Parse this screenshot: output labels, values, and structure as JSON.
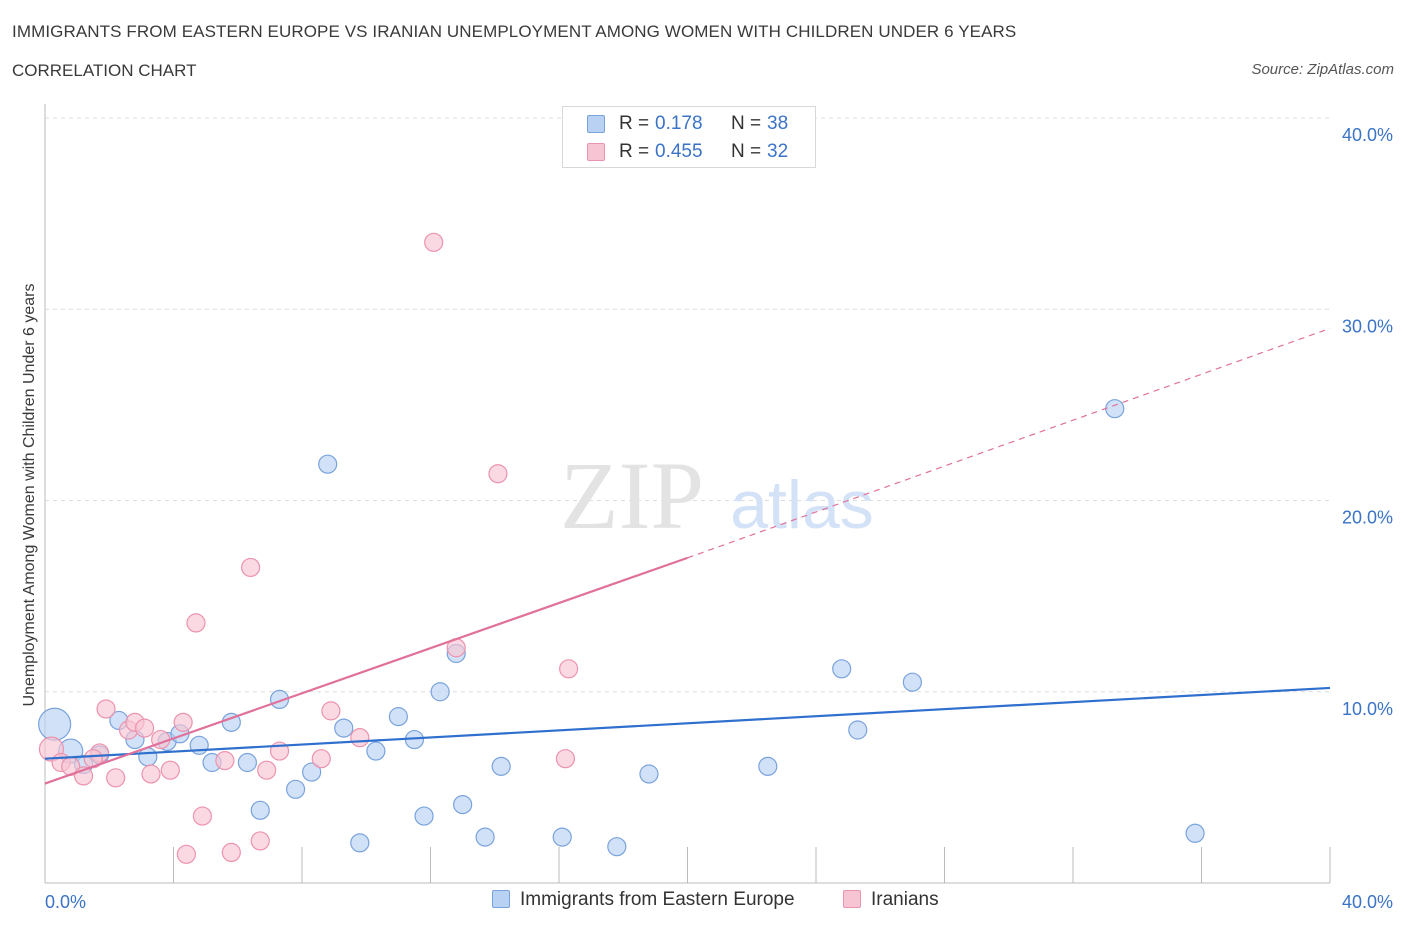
{
  "header": {
    "title": "IMMIGRANTS FROM EASTERN EUROPE VS IRANIAN UNEMPLOYMENT AMONG WOMEN WITH CHILDREN UNDER 6 YEARS",
    "subtitle": "CORRELATION CHART",
    "source": "Source: ZipAtlas.com"
  },
  "watermark": {
    "zip": "ZIP",
    "atlas": "atlas"
  },
  "stats_legend": [
    {
      "r_label": "R =",
      "r_value": "0.178",
      "n_label": "N =",
      "n_value": "38"
    },
    {
      "r_label": "R =",
      "r_value": "0.455",
      "n_label": "N =",
      "n_value": "32"
    }
  ],
  "colors": {
    "blue_fill": "#b9d1f2",
    "blue_stroke": "#7aa3dc",
    "blue_line": "#2f6fce",
    "pink_fill": "#f7c4d3",
    "pink_stroke": "#ec93ae",
    "pink_line": "#e0719a",
    "tick_text": "#3b73c6",
    "grid": "#dcdcdc"
  },
  "chart_data": {
    "type": "scatter",
    "title": "IMMIGRANTS FROM EASTERN EUROPE VS IRANIAN UNEMPLOYMENT AMONG WOMEN WITH CHILDREN UNDER 6 YEARS",
    "xlabel": "",
    "ylabel": "Unemployment Among Women with Children Under 6 years",
    "xlim": [
      0,
      40
    ],
    "ylim": [
      0,
      40
    ],
    "x_tick_labels": [
      "0.0%",
      "40.0%"
    ],
    "y_ticks": [
      10,
      20,
      30,
      40
    ],
    "y_tick_labels": [
      "10.0%",
      "20.0%",
      "30.0%",
      "40.0%"
    ],
    "grid": true,
    "legend_position": "bottom-center",
    "series": [
      {
        "name": "Immigrants from Eastern Europe",
        "color": "blue",
        "R": 0.178,
        "N": 38,
        "points": [
          [
            0.3,
            8.3
          ],
          [
            0.8,
            6.9
          ],
          [
            1.2,
            6.2
          ],
          [
            1.7,
            6.7
          ],
          [
            2.3,
            8.5
          ],
          [
            2.8,
            7.5
          ],
          [
            3.2,
            6.6
          ],
          [
            3.8,
            7.4
          ],
          [
            4.2,
            7.8
          ],
          [
            4.8,
            7.2
          ],
          [
            5.2,
            6.3
          ],
          [
            5.8,
            8.4
          ],
          [
            6.3,
            6.3
          ],
          [
            6.7,
            3.8
          ],
          [
            7.3,
            9.6
          ],
          [
            7.8,
            4.9
          ],
          [
            8.3,
            5.8
          ],
          [
            8.8,
            21.9
          ],
          [
            9.3,
            8.1
          ],
          [
            9.8,
            2.1
          ],
          [
            10.3,
            6.9
          ],
          [
            11.0,
            8.7
          ],
          [
            11.5,
            7.5
          ],
          [
            11.8,
            3.5
          ],
          [
            12.3,
            10.0
          ],
          [
            12.8,
            12.0
          ],
          [
            13.0,
            4.1
          ],
          [
            13.7,
            2.4
          ],
          [
            14.2,
            6.1
          ],
          [
            16.1,
            2.4
          ],
          [
            17.8,
            1.9
          ],
          [
            18.8,
            5.7
          ],
          [
            22.5,
            6.1
          ],
          [
            24.8,
            11.2
          ],
          [
            25.3,
            8.0
          ],
          [
            27.0,
            10.5
          ],
          [
            33.3,
            24.8
          ],
          [
            35.8,
            2.6
          ]
        ],
        "trend": {
          "x": [
            0,
            40
          ],
          "y": [
            6.5,
            10.2
          ]
        }
      },
      {
        "name": "Iranians",
        "color": "pink",
        "R": 0.455,
        "N": 32,
        "points": [
          [
            0.2,
            7.0
          ],
          [
            0.5,
            6.3
          ],
          [
            0.8,
            6.1
          ],
          [
            1.2,
            5.6
          ],
          [
            1.7,
            6.8
          ],
          [
            2.2,
            5.5
          ],
          [
            1.9,
            9.1
          ],
          [
            2.6,
            8.0
          ],
          [
            2.8,
            8.4
          ],
          [
            3.1,
            8.1
          ],
          [
            3.3,
            5.7
          ],
          [
            3.6,
            7.5
          ],
          [
            3.9,
            5.9
          ],
          [
            4.3,
            8.4
          ],
          [
            4.7,
            13.6
          ],
          [
            4.9,
            3.5
          ],
          [
            4.4,
            1.5
          ],
          [
            5.6,
            6.4
          ],
          [
            5.8,
            1.6
          ],
          [
            6.4,
            16.5
          ],
          [
            6.7,
            2.2
          ],
          [
            6.9,
            5.9
          ],
          [
            7.3,
            6.9
          ],
          [
            8.6,
            6.5
          ],
          [
            8.9,
            9.0
          ],
          [
            9.8,
            7.6
          ],
          [
            12.1,
            33.5
          ],
          [
            12.8,
            12.3
          ],
          [
            14.1,
            21.4
          ],
          [
            16.2,
            6.5
          ],
          [
            16.3,
            11.2
          ],
          [
            1.5,
            6.5
          ]
        ],
        "trend": {
          "x": [
            0,
            20
          ],
          "y": [
            5.2,
            17.0
          ],
          "extension_x": [
            20,
            40
          ],
          "extension_y": [
            17.0,
            29.0
          ]
        }
      }
    ]
  }
}
